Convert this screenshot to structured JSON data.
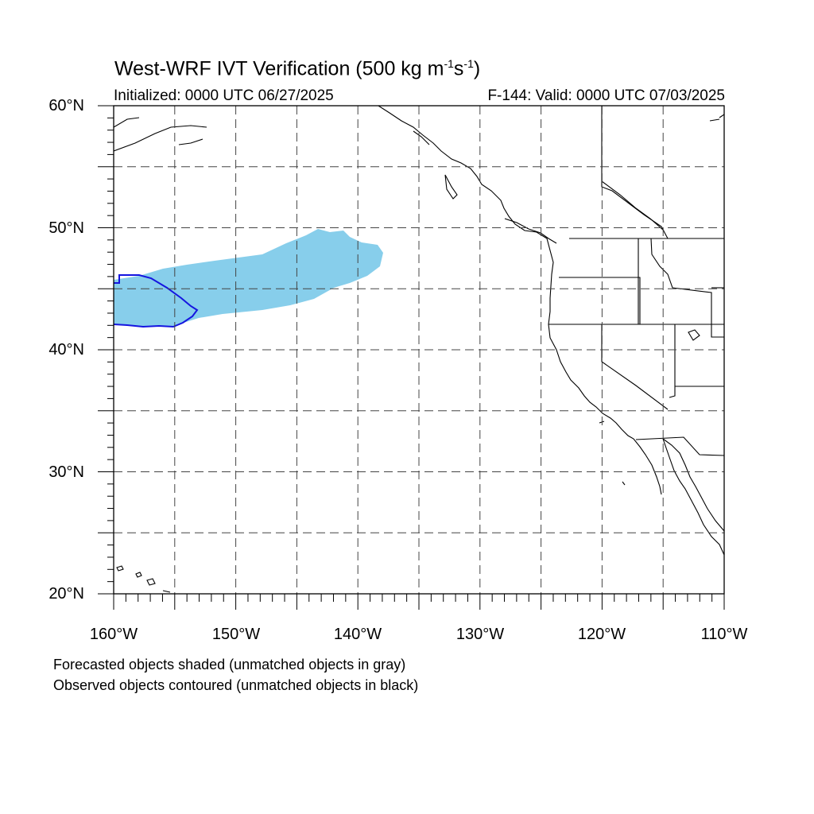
{
  "title": {
    "main": "West-WRF IVT Verification (500 kg m",
    "sup1": "-1",
    "mid": "s",
    "sup2": "-1",
    "tail": ")"
  },
  "subtitle": {
    "left": "Initialized: 0000 UTC 06/27/2025",
    "right": "F-144: Valid: 0000 UTC 07/03/2025"
  },
  "map": {
    "lon_range": [
      -160,
      -110
    ],
    "lat_range": [
      20,
      60
    ],
    "lat_labels": [
      "20°N",
      "30°N",
      "40°N",
      "50°N",
      "60°N"
    ],
    "lon_labels": [
      "160°W",
      "150°W",
      "140°W",
      "130°W",
      "120°W",
      "110°W"
    ],
    "gridlines": "dashed every 5°",
    "forecast_fill_color": "#87ceeb",
    "observed_contour_color": "#1515e0"
  },
  "notes": [
    "Forecasted objects shaded (unmatched objects in gray)",
    "Observed objects contoured (unmatched objects in black)"
  ]
}
